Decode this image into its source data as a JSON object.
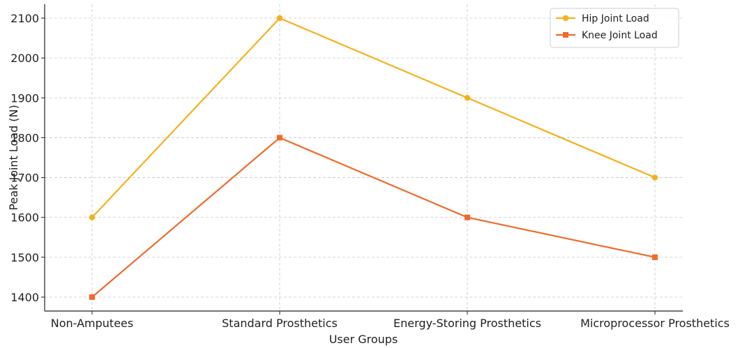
{
  "chart_data": {
    "type": "line",
    "title": "",
    "xlabel": "User Groups",
    "ylabel": "Peak Joint Load (N)",
    "categories": [
      "Non-Amputees",
      "Standard Prosthetics",
      "Energy-Storing Prosthetics",
      "Microprocessor Prosthetics"
    ],
    "ylim": [
      1365,
      2135
    ],
    "yticks": [
      1400,
      1500,
      1600,
      1700,
      1800,
      1900,
      2000,
      2100
    ],
    "grid": true,
    "legend_position": "top-right",
    "series": [
      {
        "name": "Hip Joint Load",
        "values": [
          1600,
          2100,
          1900,
          1700
        ],
        "color": "#f5b01c",
        "marker": "circle"
      },
      {
        "name": "Knee Joint Load",
        "values": [
          1400,
          1800,
          1600,
          1500
        ],
        "color": "#f06a2a",
        "marker": "square"
      }
    ]
  }
}
